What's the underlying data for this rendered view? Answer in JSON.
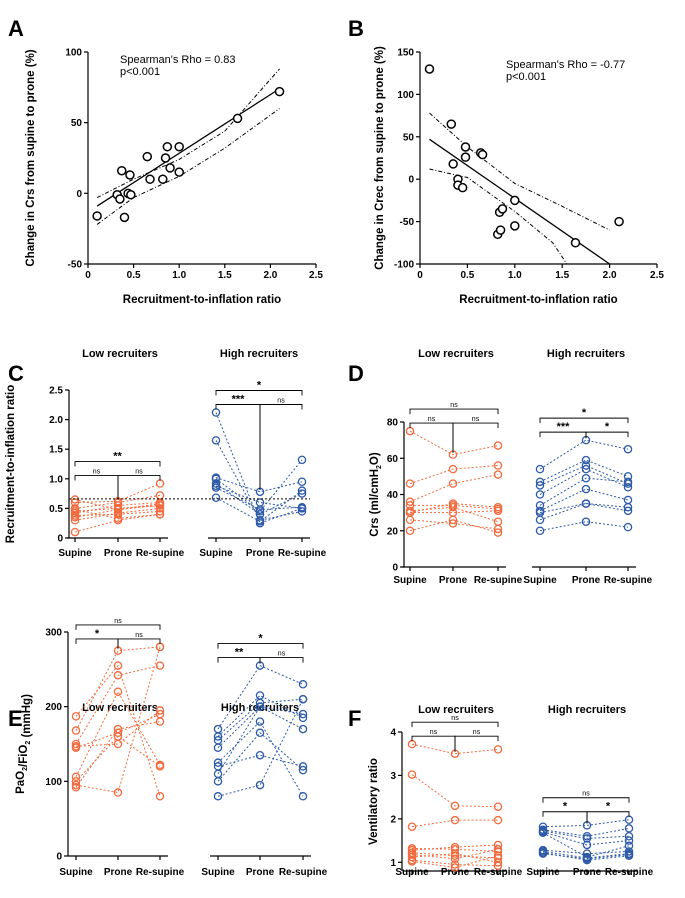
{
  "colors": {
    "low": "#f26a3d",
    "high": "#2d5aa8",
    "axis": "#000000"
  },
  "chart_data": [
    {
      "panel": "A",
      "type": "scatter",
      "xlabel": "Recruitment-to-inflation ratio",
      "ylabel": "Change in Crs from supine to prone (%)",
      "xlim": [
        0,
        2.5
      ],
      "ylim": [
        -50,
        100
      ],
      "xticks": [
        "0",
        "0.5",
        "1.0",
        "1.5",
        "2.0",
        "2.5"
      ],
      "yticks": [
        "-50",
        "0",
        "50",
        "100"
      ],
      "annotation": [
        "Spearman's Rho = 0.83",
        "p<0.001"
      ],
      "points": [
        [
          0.1,
          -16
        ],
        [
          0.32,
          -1
        ],
        [
          0.35,
          -4
        ],
        [
          0.37,
          16
        ],
        [
          0.4,
          -17
        ],
        [
          0.44,
          0
        ],
        [
          0.46,
          13
        ],
        [
          0.47,
          -1
        ],
        [
          0.65,
          26
        ],
        [
          0.68,
          10
        ],
        [
          0.82,
          10
        ],
        [
          0.85,
          25
        ],
        [
          0.87,
          33
        ],
        [
          0.9,
          18
        ],
        [
          1.0,
          15
        ],
        [
          1.0,
          33
        ],
        [
          1.64,
          53
        ],
        [
          2.1,
          72
        ]
      ],
      "fit": [
        [
          0.1,
          -9
        ],
        [
          2.1,
          74
        ]
      ],
      "ci_upper": [
        [
          0.1,
          -3
        ],
        [
          0.5,
          10
        ],
        [
          1.0,
          24
        ],
        [
          1.5,
          44
        ],
        [
          2.1,
          88
        ]
      ],
      "ci_lower": [
        [
          0.1,
          -22
        ],
        [
          0.5,
          -3
        ],
        [
          1.0,
          12
        ],
        [
          1.5,
          32
        ],
        [
          2.1,
          60
        ]
      ]
    },
    {
      "panel": "B",
      "type": "scatter",
      "xlabel": "Recruitment-to-inflation ratio",
      "ylabel": "Change in Crec from supine to prone (%)",
      "xlim": [
        0,
        2.5
      ],
      "ylim": [
        -100,
        150
      ],
      "xticks": [
        "0",
        "0.5",
        "1.0",
        "1.5",
        "2.0",
        "2.5"
      ],
      "yticks": [
        "-100",
        "-50",
        "0",
        "50",
        "100",
        "150"
      ],
      "annotation": [
        "Spearman's Rho = -0.77",
        "p<0.001"
      ],
      "points": [
        [
          0.1,
          130
        ],
        [
          0.33,
          65
        ],
        [
          0.35,
          18
        ],
        [
          0.4,
          0
        ],
        [
          0.4,
          -7
        ],
        [
          0.45,
          -10
        ],
        [
          0.48,
          38
        ],
        [
          0.48,
          26
        ],
        [
          0.64,
          31
        ],
        [
          0.66,
          29
        ],
        [
          0.82,
          -65
        ],
        [
          0.84,
          -39
        ],
        [
          0.85,
          -60
        ],
        [
          0.87,
          -35
        ],
        [
          1.0,
          -25
        ],
        [
          1.0,
          -55
        ],
        [
          1.64,
          -75
        ],
        [
          2.1,
          -50
        ]
      ],
      "fit": [
        [
          0.1,
          47
        ],
        [
          2.0,
          -100
        ]
      ],
      "ci_upper": [
        [
          0.1,
          78
        ],
        [
          0.5,
          38
        ],
        [
          1.0,
          -5
        ],
        [
          1.5,
          -32
        ],
        [
          2.0,
          -60
        ]
      ],
      "ci_lower": [
        [
          0.1,
          12
        ],
        [
          0.5,
          2
        ],
        [
          1.0,
          -38
        ],
        [
          1.4,
          -75
        ],
        [
          1.55,
          -100
        ]
      ]
    },
    {
      "panel": "C",
      "type": "line",
      "ylabel": "Recruitment-to-inflation ratio",
      "ylim": [
        0,
        2.5
      ],
      "yticks": [
        "0",
        "0.5",
        "1.0",
        "1.5",
        "2.0",
        "2.5"
      ],
      "categories": [
        "Supine",
        "Prone",
        "Re-supine"
      ],
      "groups": [
        {
          "name": "Low recruiters",
          "color": "low",
          "series": [
            [
              0.1,
              0.3,
              0.4
            ],
            [
              0.3,
              0.42,
              0.5
            ],
            [
              0.35,
              0.48,
              0.58
            ],
            [
              0.38,
              0.4,
              0.45
            ],
            [
              0.42,
              0.55,
              0.6
            ],
            [
              0.45,
              0.5,
              0.55
            ],
            [
              0.48,
              0.33,
              0.4
            ],
            [
              0.5,
              0.6,
              0.72
            ],
            [
              0.6,
              0.62,
              0.92
            ],
            [
              0.65,
              0.48,
              0.55
            ]
          ],
          "brackets": [
            {
              "from": 0,
              "to": 1,
              "level": 0,
              "label": "ns"
            },
            {
              "from": 1,
              "to": 2,
              "level": 0,
              "label": "ns"
            },
            {
              "from": 0,
              "to": 2,
              "level": 1,
              "label": "**"
            }
          ]
        },
        {
          "name": "High recruiters",
          "color": "high",
          "series": [
            [
              2.12,
              0.25,
              0.5
            ],
            [
              1.65,
              0.3,
              0.45
            ],
            [
              1.02,
              0.78,
              0.95
            ],
            [
              1.0,
              0.45,
              1.32
            ],
            [
              0.92,
              0.4,
              0.75
            ],
            [
              0.88,
              0.6,
              0.5
            ],
            [
              0.85,
              0.48,
              0.52
            ],
            [
              0.68,
              0.28,
              0.8
            ]
          ],
          "brackets": [
            {
              "from": 0,
              "to": 1,
              "level": 0,
              "label": "***"
            },
            {
              "from": 1,
              "to": 2,
              "level": 0,
              "label": "ns"
            },
            {
              "from": 0,
              "to": 2,
              "level": 1,
              "label": "*"
            }
          ]
        }
      ],
      "threshold": 0.66
    },
    {
      "panel": "D",
      "type": "line",
      "ylabel": "Crs (ml/cmH2O)",
      "ylim": [
        0,
        80
      ],
      "yticks": [
        "0",
        "20",
        "40",
        "60",
        "80"
      ],
      "categories": [
        "Supine",
        "Prone",
        "Re-supine"
      ],
      "groups": [
        {
          "name": "Low recruiters",
          "color": "low",
          "series": [
            [
              75,
              62,
              67
            ],
            [
              46,
              54,
              56
            ],
            [
              36,
              46,
              51
            ],
            [
              34,
              34,
              32
            ],
            [
              31,
              33,
              25
            ],
            [
              30,
              35,
              33
            ],
            [
              30,
              30,
              31
            ],
            [
              26,
              24,
              21
            ],
            [
              20,
              26,
              19
            ]
          ],
          "brackets": [
            {
              "from": 0,
              "to": 1,
              "level": 0,
              "label": "ns"
            },
            {
              "from": 1,
              "to": 2,
              "level": 0,
              "label": "ns"
            },
            {
              "from": 0,
              "to": 2,
              "level": 1,
              "label": "ns"
            }
          ]
        },
        {
          "name": "High recruiters",
          "color": "high",
          "series": [
            [
              54,
              70,
              65
            ],
            [
              47,
              59,
              50
            ],
            [
              45,
              56,
              46
            ],
            [
              40,
              54,
              44
            ],
            [
              34,
              49,
              47
            ],
            [
              31,
              43,
              37
            ],
            [
              30,
              35,
              33
            ],
            [
              26,
              35,
              31
            ],
            [
              20,
              25,
              22
            ]
          ],
          "brackets": [
            {
              "from": 0,
              "to": 1,
              "level": 0,
              "label": "***"
            },
            {
              "from": 1,
              "to": 2,
              "level": 0,
              "label": "*"
            },
            {
              "from": 0,
              "to": 2,
              "level": 1,
              "label": "*"
            }
          ]
        }
      ]
    },
    {
      "panel": "E",
      "type": "line",
      "ylabel": "PaO2/FiO2 (mmHg)",
      "ylim": [
        0,
        300
      ],
      "yticks": [
        "0",
        "100",
        "200",
        "300"
      ],
      "categories": [
        "Supine",
        "Prone",
        "Re-supine"
      ],
      "groups": [
        {
          "name": "Low recruiters",
          "color": "low",
          "series": [
            [
              187,
              255,
              80
            ],
            [
              168,
              275,
              280
            ],
            [
              150,
              242,
              255
            ],
            [
              147,
              150,
              195
            ],
            [
              145,
              165,
              190
            ],
            [
              106,
              220,
              122
            ],
            [
              100,
              160,
              120
            ],
            [
              95,
              85,
              280
            ],
            [
              92,
              170,
              180
            ]
          ],
          "brackets": [
            {
              "from": 0,
              "to": 1,
              "level": 0,
              "label": "*"
            },
            {
              "from": 1,
              "to": 2,
              "level": 0,
              "label": "ns"
            },
            {
              "from": 0,
              "to": 2,
              "level": 1,
              "label": "ns"
            }
          ]
        },
        {
          "name": "High recruiters",
          "color": "high",
          "series": [
            [
              170,
              255,
              230
            ],
            [
              160,
              215,
              185
            ],
            [
              155,
              205,
              210
            ],
            [
              145,
              200,
              170
            ],
            [
              125,
              180,
              80
            ],
            [
              120,
              135,
              120
            ],
            [
              110,
              200,
              190
            ],
            [
              100,
              165,
              115
            ],
            [
              80,
              95,
              210
            ]
          ],
          "brackets": [
            {
              "from": 0,
              "to": 1,
              "level": 0,
              "label": "**"
            },
            {
              "from": 1,
              "to": 2,
              "level": 0,
              "label": "ns"
            },
            {
              "from": 0,
              "to": 2,
              "level": 1,
              "label": "*"
            }
          ]
        }
      ]
    },
    {
      "panel": "F",
      "type": "line",
      "ylabel": "Ventilatory ratio",
      "ylim": [
        0.8,
        4
      ],
      "yticks": [
        "1",
        "2",
        "3",
        "4"
      ],
      "categories": [
        "Supine",
        "Prone",
        "Re-supine"
      ],
      "groups": [
        {
          "name": "Low recruiters",
          "color": "low",
          "series": [
            [
              3.72,
              3.5,
              3.6
            ],
            [
              3.02,
              2.3,
              2.28
            ],
            [
              1.82,
              1.97,
              1.97
            ],
            [
              1.32,
              1.3,
              1.25
            ],
            [
              1.28,
              1.35,
              1.4
            ],
            [
              1.22,
              1.15,
              1.1
            ],
            [
              1.18,
              1.08,
              1.3
            ],
            [
              1.12,
              1.2,
              1.0
            ],
            [
              1.05,
              0.95,
              0.92
            ],
            [
              1.02,
              0.88,
              1.15
            ]
          ],
          "brackets": [
            {
              "from": 0,
              "to": 1,
              "level": 0,
              "label": "ns"
            },
            {
              "from": 1,
              "to": 2,
              "level": 0,
              "label": "ns"
            },
            {
              "from": 0,
              "to": 2,
              "level": 1,
              "label": "ns"
            }
          ]
        },
        {
          "name": "High recruiters",
          "color": "high",
          "series": [
            [
              1.82,
              1.85,
              1.98
            ],
            [
              1.75,
              1.6,
              1.78
            ],
            [
              1.72,
              1.55,
              1.6
            ],
            [
              1.7,
              1.4,
              1.5
            ],
            [
              1.68,
              1.12,
              1.38
            ],
            [
              1.28,
              1.2,
              1.25
            ],
            [
              1.25,
              1.1,
              1.2
            ],
            [
              1.22,
              1.05,
              1.15
            ],
            [
              1.2,
              1.08,
              1.18
            ]
          ],
          "brackets": [
            {
              "from": 0,
              "to": 1,
              "level": 0,
              "label": "*"
            },
            {
              "from": 1,
              "to": 2,
              "level": 0,
              "label": "*"
            },
            {
              "from": 0,
              "to": 2,
              "level": 1,
              "label": "ns"
            }
          ]
        }
      ]
    }
  ]
}
